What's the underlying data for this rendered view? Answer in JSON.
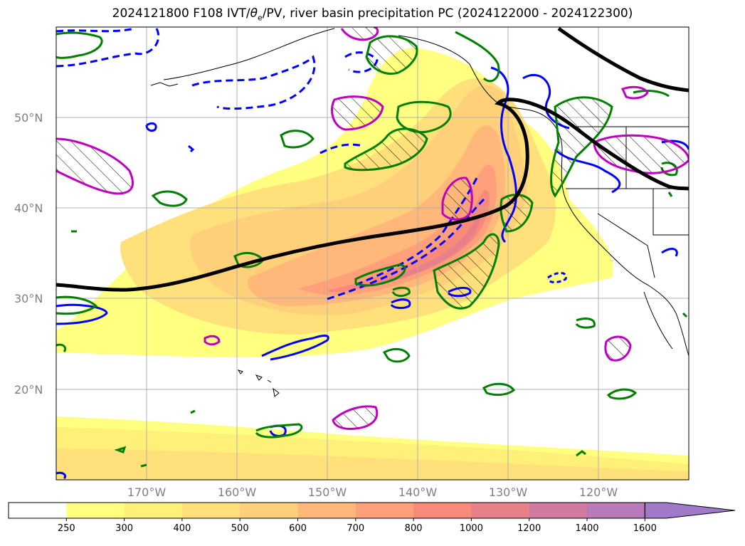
{
  "title": {
    "prefix": "2024121800 F108 IVT/",
    "theta": "θ",
    "theta_sub": "e",
    "suffix": "/PV, river basin precipitation PC (2024122000 - 2024122300)"
  },
  "map": {
    "lat_labels": [
      "50°N",
      "40°N",
      "30°N",
      "20°N"
    ],
    "lon_labels": [
      "170°W",
      "160°W",
      "150°W",
      "140°W",
      "130°W",
      "120°W"
    ],
    "extent": {
      "lon_min": -180,
      "lon_max": -110,
      "lat_min": 10,
      "lat_max": 60
    },
    "gridlines": true,
    "colors": {
      "ivt_low": "#ffff80",
      "ivt_high": "#f08080",
      "theta_e_contour": "#000000",
      "pv_positive": "#0000ff",
      "pv_negative": "#008000",
      "precip_pc": "#c000c0",
      "coastline": "#000000"
    }
  },
  "colorbar": {
    "labels": [
      "250",
      "300",
      "400",
      "500",
      "600",
      "700",
      "800",
      "1000",
      "1200",
      "1400",
      "1600"
    ],
    "colors": [
      "#ffffff",
      "#ffff80",
      "#fff07a",
      "#ffe07a",
      "#ffd07a",
      "#ffb87a",
      "#ffa07a",
      "#f88a7a",
      "#e8808a",
      "#d07aa0",
      "#b87ab8",
      "#a07ac8"
    ],
    "extend": "max"
  }
}
